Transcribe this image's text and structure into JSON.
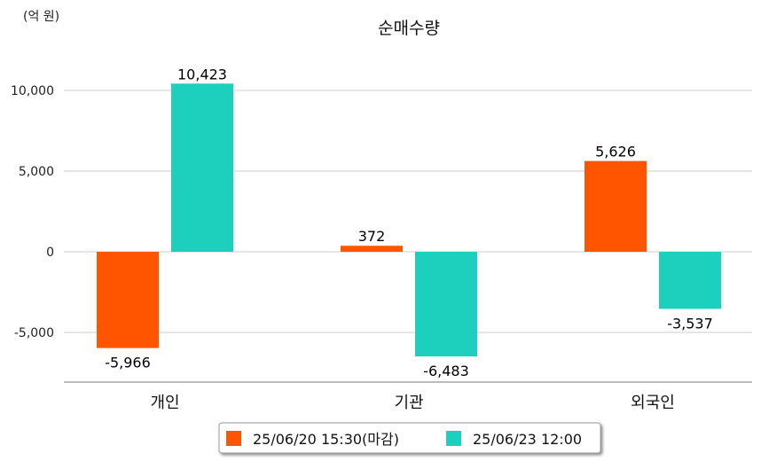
{
  "chart_data": {
    "type": "bar",
    "title": "순매수량",
    "unit_label": "(억 원)",
    "categories": [
      "개인",
      "기관",
      "외국인"
    ],
    "series": [
      {
        "name": "25/06/20 15:30(마감)",
        "color": "#ff5500",
        "values": [
          -5966,
          372,
          5626
        ],
        "labels": [
          "-5,966",
          "372",
          "5,626"
        ]
      },
      {
        "name": "25/06/23 12:00",
        "color": "#1dcfbd",
        "values": [
          10423,
          -6483,
          -3537
        ],
        "labels": [
          "10,423",
          "-6,483",
          "-3,537"
        ]
      }
    ],
    "yticks": [
      -5000,
      0,
      5000,
      10000
    ],
    "ytick_labels": [
      "-5,000",
      "0",
      "5,000",
      "10,000"
    ],
    "ylim": [
      -8000,
      12000
    ],
    "grid": true,
    "legend_position": "bottom"
  }
}
